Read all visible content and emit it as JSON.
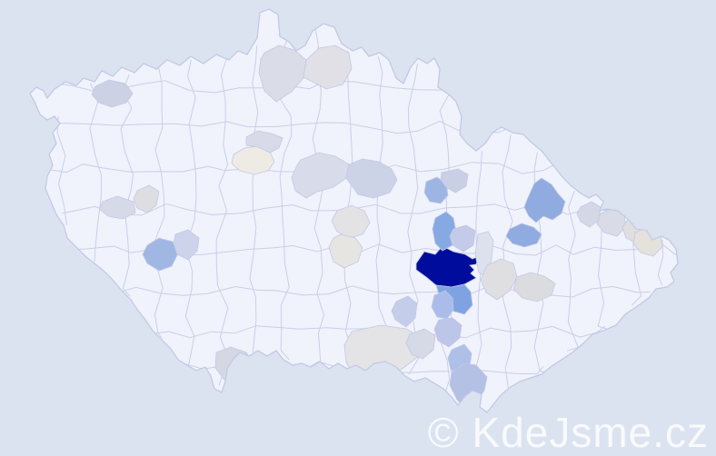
{
  "watermark": {
    "text": "© KdeJsme.cz"
  },
  "map": {
    "background_color": "#dbe3f0",
    "land_color": "#f0f3fb",
    "border_color": "#c9cee9",
    "max_density_color": "#000d9c",
    "mid_density_color": "#7fa3e2",
    "low_density_color": "#dedee2"
  },
  "districts": [
    {
      "color": "#ccd2e3"
    },
    {
      "color": "#dadce7"
    },
    {
      "color": "#e1e0e6"
    },
    {
      "color": "#edebe3"
    },
    {
      "color": "#d8dbe7"
    },
    {
      "color": "#d6dae8"
    },
    {
      "color": "#dedee2"
    },
    {
      "color": "#a0b7e4"
    },
    {
      "color": "#ccd3ea"
    },
    {
      "color": "#d8dcea"
    },
    {
      "color": "#cdd3e7"
    },
    {
      "color": "#e3e2e5"
    },
    {
      "color": "#e6e5e2"
    },
    {
      "color": "#000d9c"
    },
    {
      "color": "#7fa3e2"
    },
    {
      "color": "#86a9e4"
    },
    {
      "color": "#9cb5e2"
    },
    {
      "color": "#c9cfe4"
    },
    {
      "color": "#c3cbe8"
    },
    {
      "color": "#dde1ee"
    },
    {
      "color": "#8fabdf"
    },
    {
      "color": "#8fabdf"
    },
    {
      "color": "#dfdee1"
    },
    {
      "color": "#dcdce0"
    },
    {
      "color": "#d9dbe6"
    },
    {
      "color": "#e0dee0"
    },
    {
      "color": "#e5e1db"
    },
    {
      "color": "#d4d8e6"
    },
    {
      "color": "#d5d8e2"
    },
    {
      "color": "#e4e3e6"
    },
    {
      "color": "#c4cdea"
    },
    {
      "color": "#aabdea"
    },
    {
      "color": "#bdc6e8"
    },
    {
      "color": "#aebfe8"
    },
    {
      "color": "#b4c0e4"
    },
    {
      "color": "#d6d9e6"
    }
  ]
}
